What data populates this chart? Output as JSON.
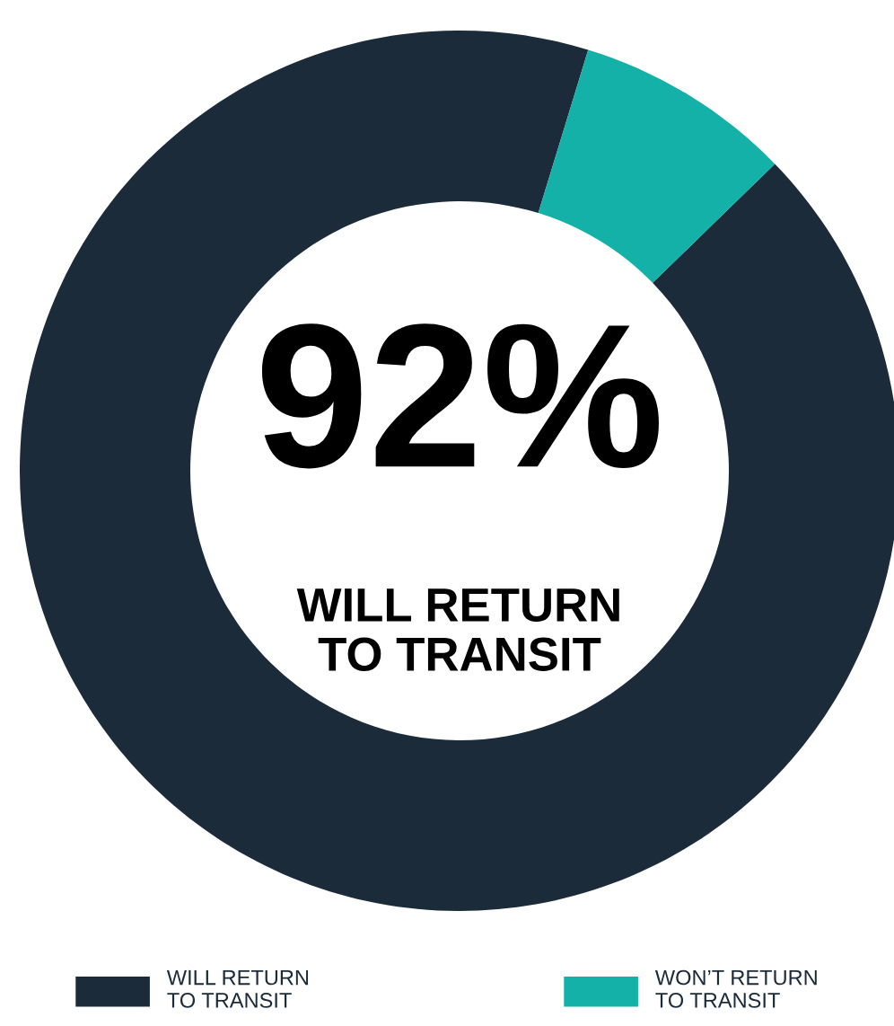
{
  "chart_data": {
    "type": "donut",
    "categories": [
      "WILL RETURN\nTO TRANSIT",
      "WON’T RETURN\nTO TRANSIT"
    ],
    "values": [
      92,
      8
    ],
    "colors": [
      "#1b2b3a",
      "#14b1a8"
    ],
    "annotations": [
      "92%",
      "WILL RETURN\nTO TRANSIT"
    ],
    "legend": "bottom"
  }
}
